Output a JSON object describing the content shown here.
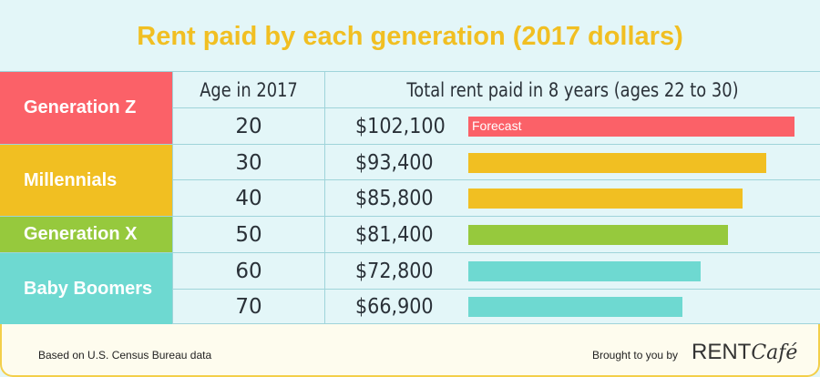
{
  "title": "Rent paid by each generation (2017 dollars)",
  "colors": {
    "generation_z": "#fb6168",
    "millennials": "#f1bf22",
    "generation_x": "#96c93d",
    "baby_boomers": "#6ed9d1"
  },
  "chart_data": {
    "type": "bar",
    "title": "Rent paid by each generation (2017 dollars)",
    "column_headers": {
      "age": "Age in 2017",
      "total": "Total rent paid in 8 years (ages 22 to 30)"
    },
    "groups": [
      {
        "name": "Generation Z",
        "color": "#fb6168",
        "rows": [
          0
        ]
      },
      {
        "name": "Millennials",
        "color": "#f1bf22",
        "rows": [
          1,
          2
        ]
      },
      {
        "name": "Generation X",
        "color": "#96c93d",
        "rows": [
          3
        ]
      },
      {
        "name": "Baby Boomers",
        "color": "#6ed9d1",
        "rows": [
          4,
          5
        ]
      }
    ],
    "rows": [
      {
        "age": "20",
        "value": 102100,
        "label": "$102,100",
        "annotation": "Forecast",
        "color": "#fb6168"
      },
      {
        "age": "30",
        "value": 93400,
        "label": "$93,400",
        "color": "#f1bf22"
      },
      {
        "age": "40",
        "value": 85800,
        "label": "$85,800",
        "color": "#f1bf22"
      },
      {
        "age": "50",
        "value": 81400,
        "label": "$81,400",
        "color": "#96c93d"
      },
      {
        "age": "60",
        "value": 72800,
        "label": "$72,800",
        "color": "#6ed9d1"
      },
      {
        "age": "70",
        "value": 66900,
        "label": "$66,900",
        "color": "#6ed9d1"
      }
    ],
    "xlim": [
      0,
      102100
    ]
  },
  "footer": {
    "source": "Based on U.S. Census Bureau data",
    "brought_by": "Brought to you by",
    "logo_rent": "RENT",
    "logo_cafe": "Café"
  }
}
